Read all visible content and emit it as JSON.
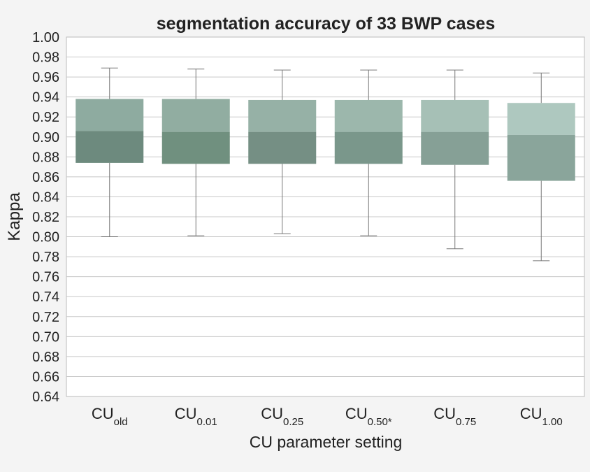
{
  "chart_data": {
    "type": "box",
    "title": "segmentation accuracy of 33 BWP cases",
    "xlabel": "CU parameter setting",
    "ylabel": "Kappa",
    "ylim": [
      0.64,
      1.0
    ],
    "yticks": [
      "0.64",
      "0.66",
      "0.68",
      "0.70",
      "0.72",
      "0.74",
      "0.76",
      "0.78",
      "0.80",
      "0.82",
      "0.84",
      "0.86",
      "0.88",
      "0.90",
      "0.92",
      "0.94",
      "0.96",
      "0.98",
      "1.00"
    ],
    "grid": true,
    "categories": [
      {
        "base": "CU",
        "sub": "old"
      },
      {
        "base": "CU",
        "sub": "0.01"
      },
      {
        "base": "CU",
        "sub": "0.25"
      },
      {
        "base": "CU",
        "sub": "0.50*"
      },
      {
        "base": "CU",
        "sub": "0.75"
      },
      {
        "base": "CU",
        "sub": "1.00"
      }
    ],
    "boxes": [
      {
        "min": 0.8,
        "q1": 0.874,
        "median": 0.906,
        "q3": 0.938,
        "max": 0.969
      },
      {
        "min": 0.801,
        "q1": 0.873,
        "median": 0.905,
        "q3": 0.938,
        "max": 0.968
      },
      {
        "min": 0.803,
        "q1": 0.873,
        "median": 0.905,
        "q3": 0.937,
        "max": 0.967
      },
      {
        "min": 0.801,
        "q1": 0.873,
        "median": 0.905,
        "q3": 0.937,
        "max": 0.967
      },
      {
        "min": 0.788,
        "q1": 0.872,
        "median": 0.905,
        "q3": 0.937,
        "max": 0.967
      },
      {
        "min": 0.776,
        "q1": 0.856,
        "median": 0.902,
        "q3": 0.934,
        "max": 0.964
      }
    ],
    "colors": {
      "lower": [
        "#6d8a7e",
        "#70907f",
        "#758f84",
        "#7a978b",
        "#86a096",
        "#8aa59b"
      ],
      "upper": [
        "#8eaba0",
        "#91ada1",
        "#96b1a6",
        "#9cb7ac",
        "#a6c0b6",
        "#aec8bf"
      ],
      "whisker": "#777777",
      "grid": "#c8c8c8",
      "plot_background": "#ffffff"
    }
  }
}
